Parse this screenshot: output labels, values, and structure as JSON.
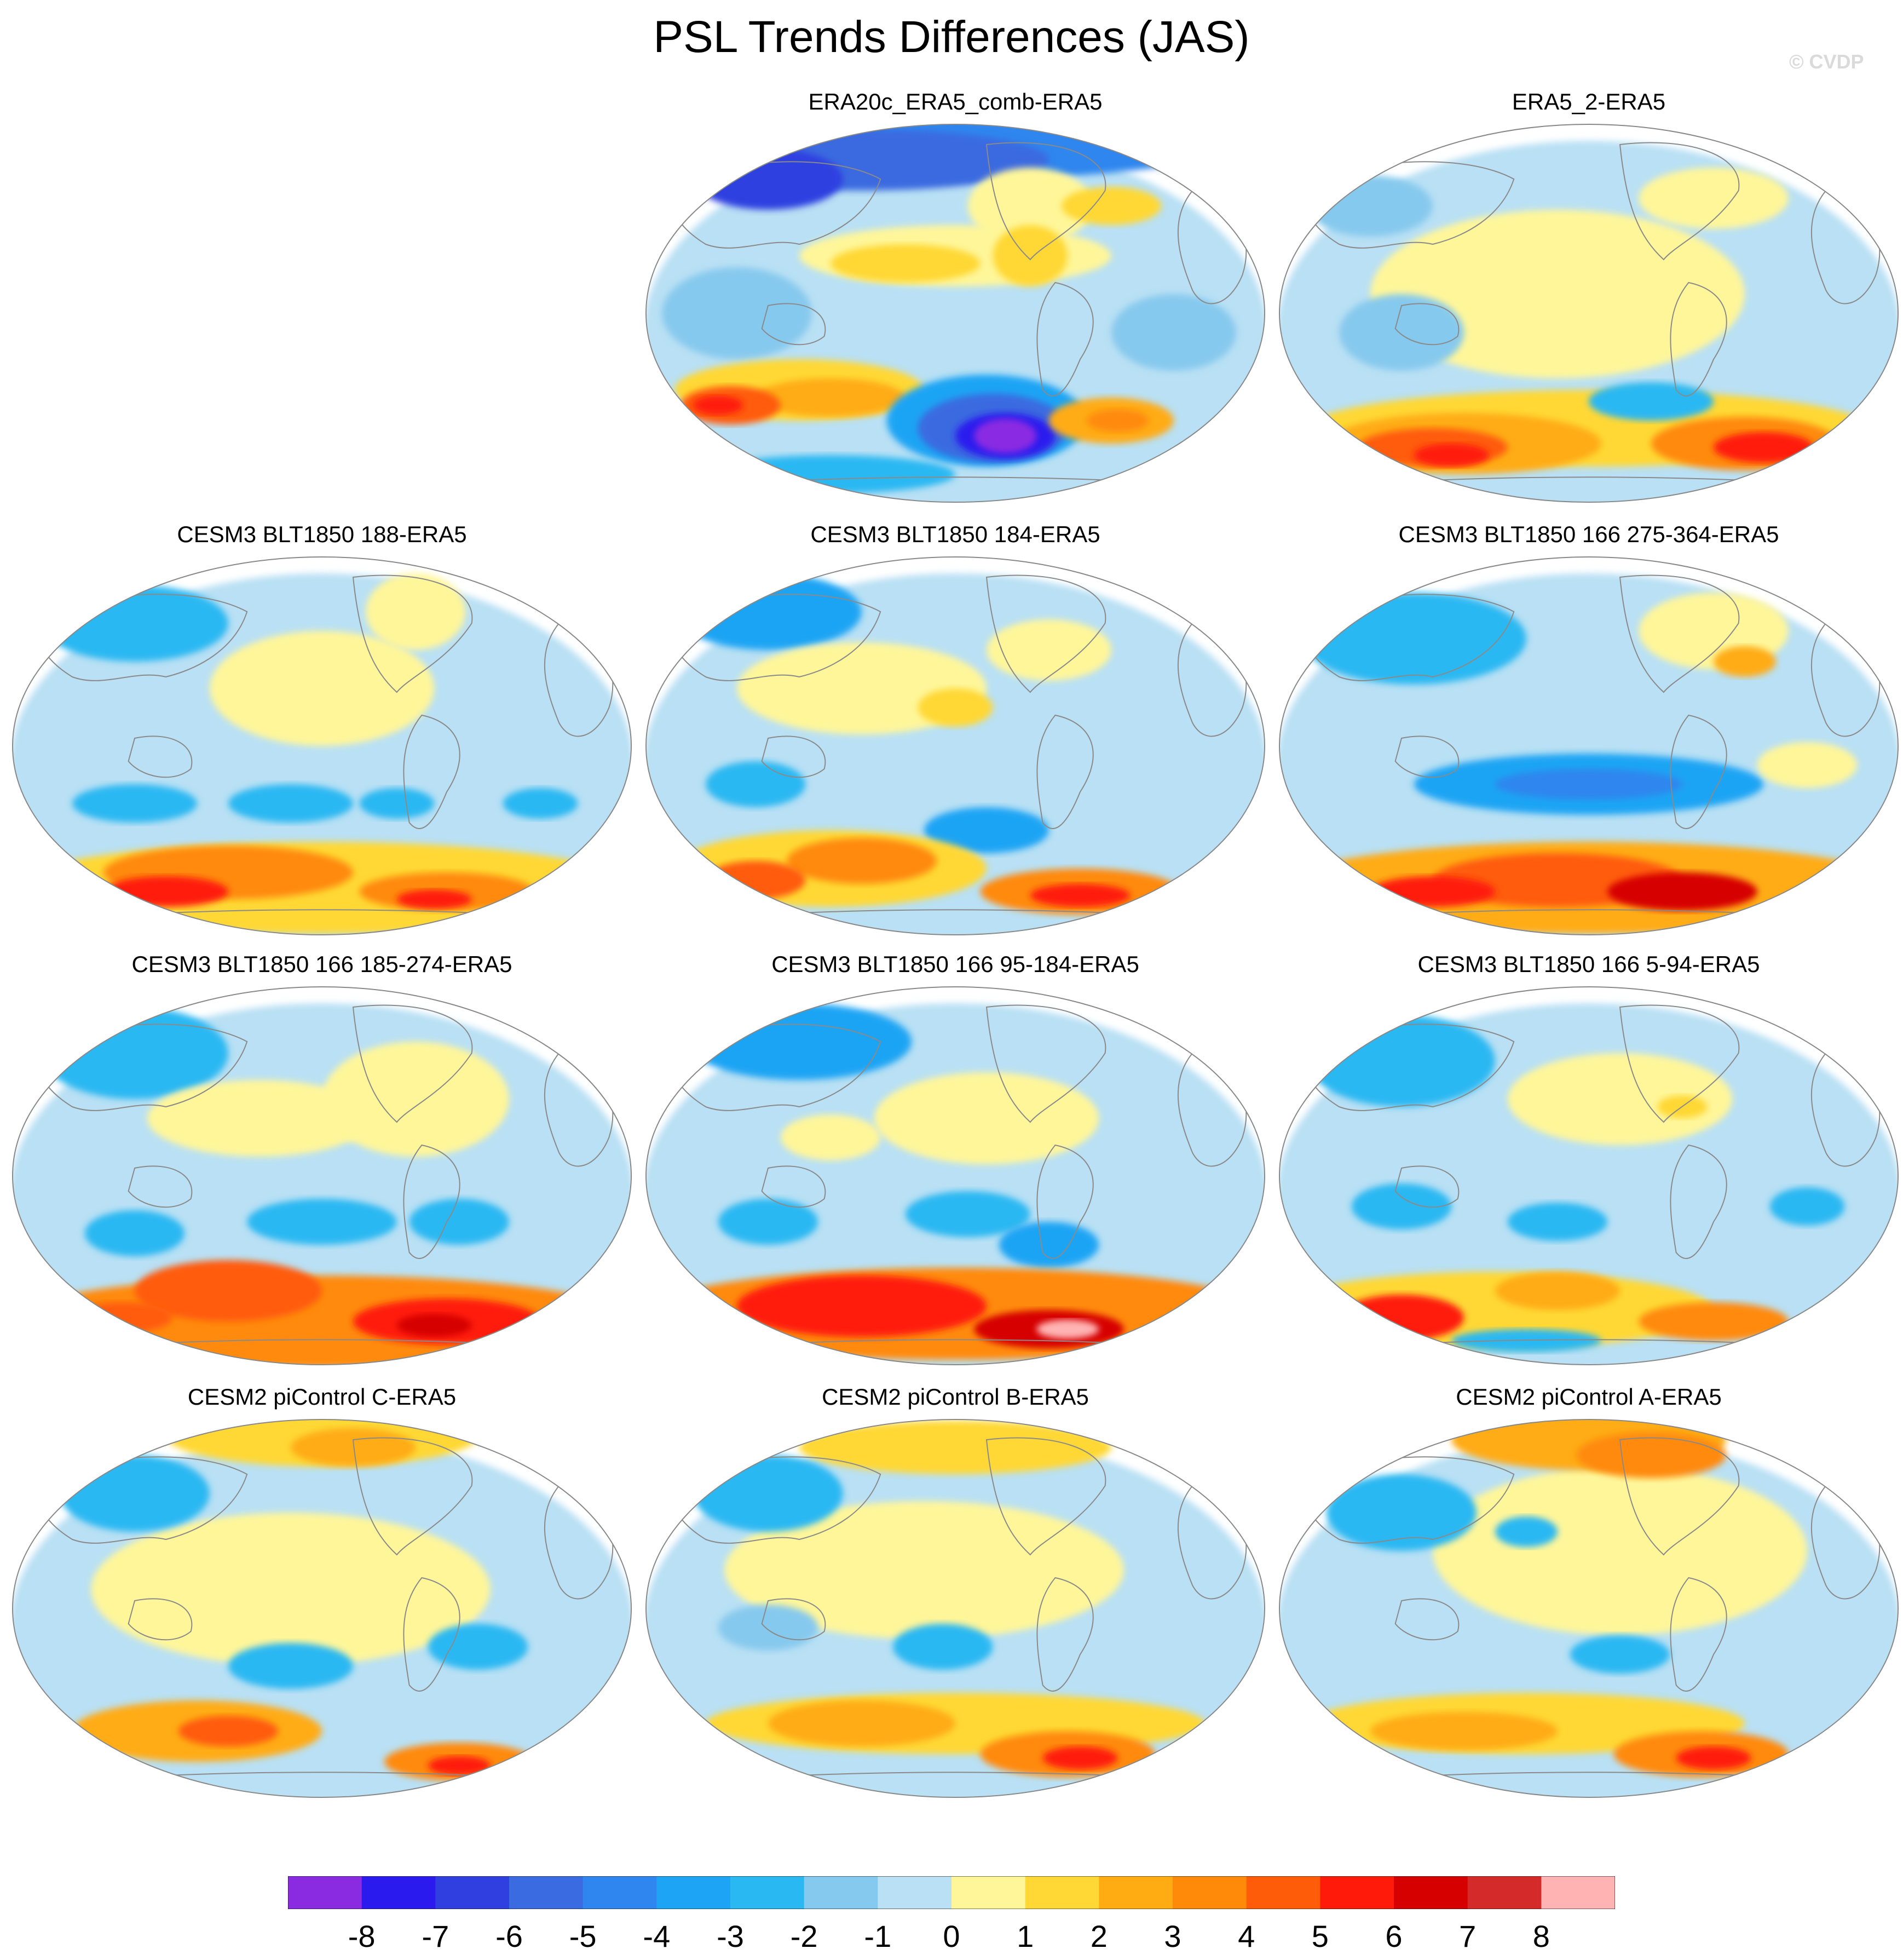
{
  "figure": {
    "title": "PSL Trends Differences (JAS)",
    "credit": "© CVDP"
  },
  "panels": [
    {
      "id": "p1",
      "title": "ERA20c_ERA5_comb-ERA5",
      "pattern": "era20c"
    },
    {
      "id": "p2",
      "title": "ERA5_2-ERA5",
      "pattern": "era5_2"
    },
    {
      "id": "p3",
      "title": "CESM3 BLT1850 188-ERA5",
      "pattern": "cesm3_a"
    },
    {
      "id": "p4",
      "title": "CESM3 BLT1850 184-ERA5",
      "pattern": "cesm3_b"
    },
    {
      "id": "p5",
      "title": "CESM3 BLT1850 166 275-364-ERA5",
      "pattern": "cesm3_c"
    },
    {
      "id": "p6",
      "title": "CESM3 BLT1850 166 185-274-ERA5",
      "pattern": "cesm3_d"
    },
    {
      "id": "p7",
      "title": "CESM3 BLT1850 166 95-184-ERA5",
      "pattern": "cesm3_e"
    },
    {
      "id": "p8",
      "title": "CESM3 BLT1850 166 5-94-ERA5",
      "pattern": "cesm3_f"
    },
    {
      "id": "p9",
      "title": "CESM2 piControl C-ERA5",
      "pattern": "cesm2_c"
    },
    {
      "id": "p10",
      "title": "CESM2 piControl B-ERA5",
      "pattern": "cesm2_b"
    },
    {
      "id": "p11",
      "title": "CESM2 piControl A-ERA5",
      "pattern": "cesm2_a"
    }
  ],
  "colorbar": {
    "labels": [
      "-8",
      "-7",
      "-6",
      "-5",
      "-4",
      "-3",
      "-2",
      "-1",
      "0",
      "1",
      "2",
      "3",
      "4",
      "5",
      "6",
      "7",
      "8"
    ],
    "colors": [
      "#8a2be2",
      "#2b1aee",
      "#2f3fe0",
      "#3a6be0",
      "#2f86ee",
      "#1ea4f4",
      "#2ab8f2",
      "#86c9ee",
      "#b9e0f4",
      "#fff69a",
      "#ffd835",
      "#ffac12",
      "#ff8a0a",
      "#ff5c0a",
      "#ff1a0a",
      "#d60000",
      "#d42a2a",
      "#ffb3b3"
    ]
  },
  "style": {
    "land_outline": "#8a8a8a",
    "background": "#ffffff"
  }
}
